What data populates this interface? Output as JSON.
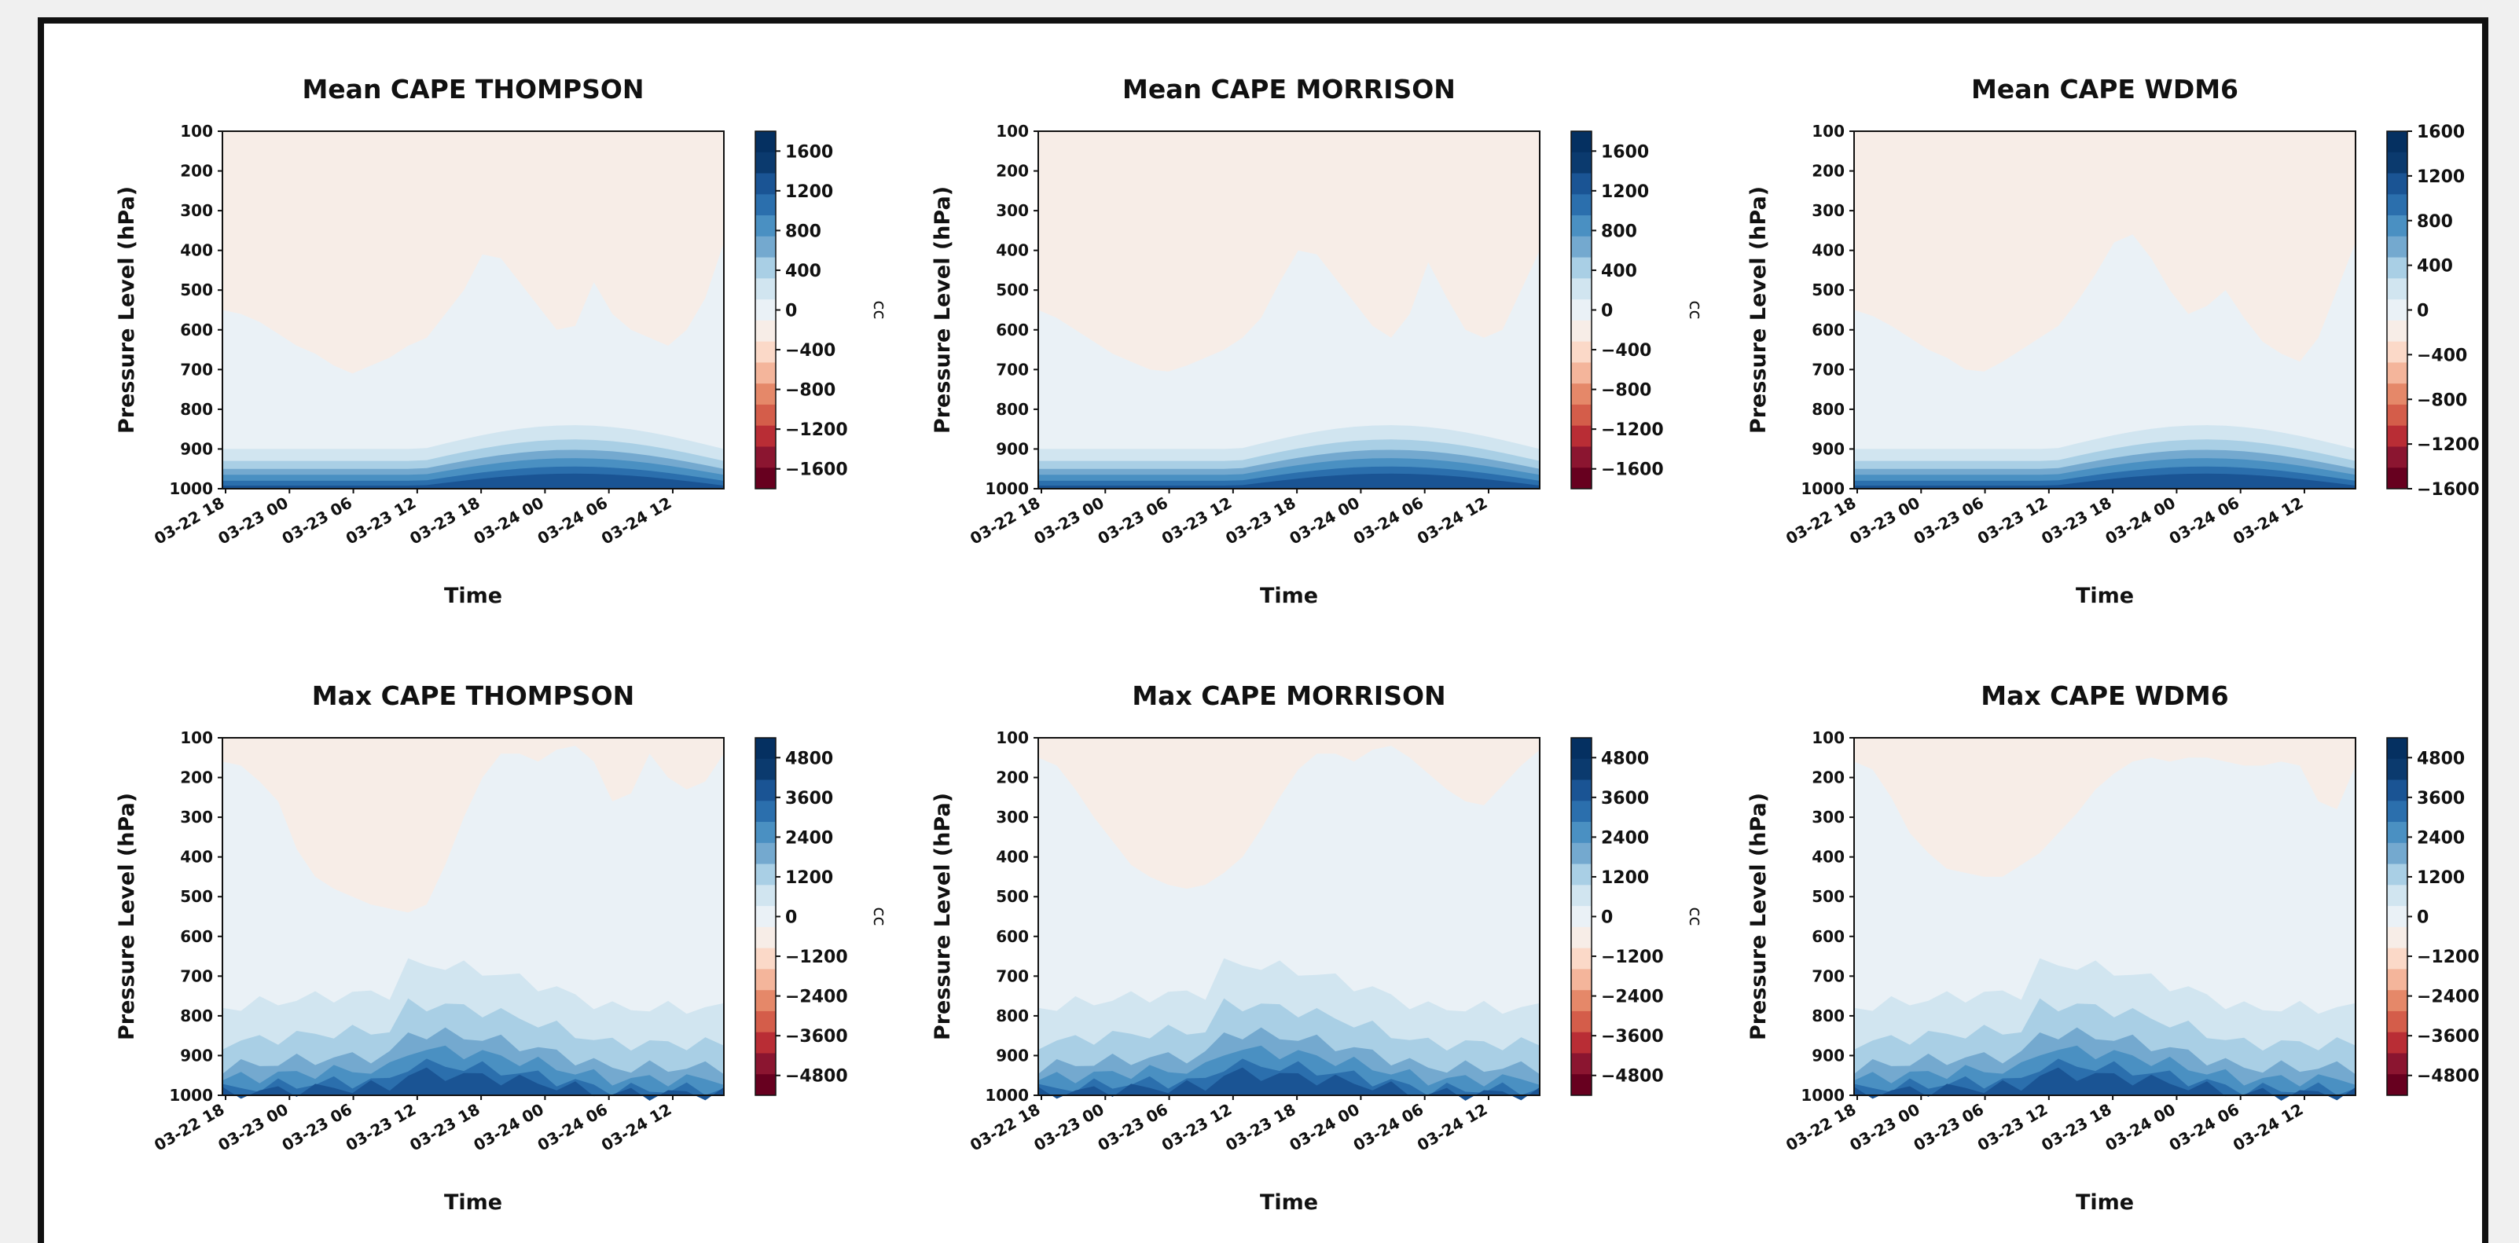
{
  "figure": {
    "background": "#ffffff",
    "frame_color": "#111111"
  },
  "chart_data": [
    {
      "type": "heatmap",
      "title": "Mean CAPE THOMPSON",
      "xlabel": "Time",
      "ylabel": "Pressure Level (hPa)",
      "xticks": [
        "03-22 18",
        "03-23 00",
        "03-23 06",
        "03-23 12",
        "03-23 18",
        "03-24 00",
        "03-24 06",
        "03-24 12"
      ],
      "yticks": [
        100,
        200,
        300,
        400,
        500,
        600,
        700,
        800,
        900,
        1000
      ],
      "y_inverted": true,
      "colormap": "RdBu",
      "colorbar": {
        "label": "cc",
        "ticks": [
          1600,
          1200,
          800,
          400,
          0,
          "−400",
          "−800",
          "−1200",
          "−1600"
        ],
        "range": [
          -1800,
          1800
        ]
      },
      "profile": {
        "upper_boundary_hpa": [
          550,
          560,
          580,
          610,
          640,
          660,
          690,
          710,
          690,
          670,
          640,
          620,
          560,
          500,
          410,
          420,
          480,
          540,
          600,
          590,
          480,
          560,
          600,
          620,
          640,
          600,
          520,
          380
        ],
        "layer_tops_hpa": [
          900,
          930,
          950,
          965,
          980,
          992
        ]
      }
    },
    {
      "type": "heatmap",
      "title": "Mean CAPE MORRISON",
      "xlabel": "Time",
      "ylabel": "Pressure Level (hPa)",
      "xticks": [
        "03-22 18",
        "03-23 00",
        "03-23 06",
        "03-23 12",
        "03-23 18",
        "03-24 00",
        "03-24 06",
        "03-24 12"
      ],
      "yticks": [
        100,
        200,
        300,
        400,
        500,
        600,
        700,
        800,
        900,
        1000
      ],
      "y_inverted": true,
      "colormap": "RdBu",
      "colorbar": {
        "label": "cc",
        "ticks": [
          1600,
          1200,
          800,
          400,
          0,
          "−400",
          "−800",
          "−1200",
          "−1600"
        ],
        "range": [
          -1800,
          1800
        ]
      },
      "profile": {
        "upper_boundary_hpa": [
          550,
          570,
          600,
          630,
          660,
          680,
          700,
          705,
          690,
          670,
          650,
          620,
          570,
          480,
          400,
          410,
          470,
          530,
          590,
          620,
          560,
          430,
          520,
          600,
          620,
          600,
          500,
          400
        ],
        "layer_tops_hpa": [
          900,
          930,
          950,
          965,
          980,
          992
        ]
      }
    },
    {
      "type": "heatmap",
      "title": "Mean CAPE WDM6",
      "xlabel": "Time",
      "ylabel": "Pressure Level (hPa)",
      "xticks": [
        "03-22 18",
        "03-23 00",
        "03-23 06",
        "03-23 12",
        "03-23 18",
        "03-24 00",
        "03-24 06",
        "03-24 12"
      ],
      "yticks": [
        100,
        200,
        300,
        400,
        500,
        600,
        700,
        800,
        900,
        1000
      ],
      "y_inverted": true,
      "colormap": "RdBu",
      "colorbar": {
        "label": "cc",
        "ticks": [
          1600,
          1200,
          800,
          400,
          0,
          "−400",
          "−800",
          "−1200",
          "−1600"
        ],
        "range": [
          -1600,
          1600
        ]
      },
      "profile": {
        "upper_boundary_hpa": [
          550,
          565,
          590,
          620,
          650,
          670,
          700,
          705,
          680,
          650,
          620,
          590,
          530,
          460,
          380,
          360,
          420,
          500,
          560,
          540,
          500,
          570,
          630,
          660,
          680,
          620,
          500,
          380
        ],
        "layer_tops_hpa": [
          900,
          930,
          950,
          965,
          980,
          992
        ]
      }
    },
    {
      "type": "heatmap",
      "title": "Max CAPE THOMPSON",
      "xlabel": "Time",
      "ylabel": "Pressure Level (hPa)",
      "xticks": [
        "03-22 18",
        "03-23 00",
        "03-23 06",
        "03-23 12",
        "03-23 18",
        "03-24 00",
        "03-24 06",
        "03-24 12"
      ],
      "yticks": [
        100,
        200,
        300,
        400,
        500,
        600,
        700,
        800,
        900,
        1000
      ],
      "y_inverted": true,
      "colormap": "RdBu",
      "colorbar": {
        "label": "cc",
        "ticks": [
          4800,
          3600,
          2400,
          1200,
          0,
          "−1200",
          "−2400",
          "−3600",
          "−4800"
        ],
        "range": [
          -5400,
          5400
        ]
      },
      "profile": {
        "upper_boundary_hpa": [
          160,
          170,
          210,
          260,
          380,
          450,
          480,
          500,
          520,
          530,
          540,
          520,
          420,
          300,
          200,
          140,
          140,
          160,
          130,
          120,
          160,
          260,
          240,
          140,
          200,
          230,
          210,
          140
        ],
        "layer_tops_hpa": [
          780,
          870,
          930,
          960,
          985,
          996
        ]
      }
    },
    {
      "type": "heatmap",
      "title": "Max CAPE MORRISON",
      "xlabel": "Time",
      "ylabel": "Pressure Level (hPa)",
      "xticks": [
        "03-22 18",
        "03-23 00",
        "03-23 06",
        "03-23 12",
        "03-23 18",
        "03-24 00",
        "03-24 06",
        "03-24 12"
      ],
      "yticks": [
        100,
        200,
        300,
        400,
        500,
        600,
        700,
        800,
        900,
        1000
      ],
      "y_inverted": true,
      "colormap": "RdBu",
      "colorbar": {
        "label": "cc",
        "ticks": [
          4800,
          3600,
          2400,
          1200,
          0,
          "−1200",
          "−2400",
          "−3600",
          "−4800"
        ],
        "range": [
          -5400,
          5400
        ]
      },
      "profile": {
        "upper_boundary_hpa": [
          150,
          170,
          230,
          300,
          360,
          420,
          450,
          470,
          480,
          470,
          440,
          400,
          330,
          250,
          180,
          140,
          140,
          160,
          130,
          120,
          150,
          190,
          230,
          260,
          270,
          220,
          170,
          130
        ],
        "layer_tops_hpa": [
          780,
          870,
          930,
          960,
          985,
          996
        ]
      }
    },
    {
      "type": "heatmap",
      "title": "Max CAPE WDM6",
      "xlabel": "Time",
      "ylabel": "Pressure Level (hPa)",
      "xticks": [
        "03-22 18",
        "03-23 00",
        "03-23 06",
        "03-23 12",
        "03-23 18",
        "03-24 00",
        "03-24 06",
        "03-24 12"
      ],
      "yticks": [
        100,
        200,
        300,
        400,
        500,
        600,
        700,
        800,
        900,
        1000
      ],
      "y_inverted": true,
      "colormap": "RdBu",
      "colorbar": {
        "label": "cc",
        "ticks": [
          4800,
          3600,
          2400,
          1200,
          0,
          "−1200",
          "−2400",
          "−3600",
          "−4800"
        ],
        "range": [
          -5400,
          5400
        ]
      },
      "profile": {
        "upper_boundary_hpa": [
          160,
          180,
          250,
          340,
          390,
          430,
          440,
          450,
          450,
          420,
          390,
          340,
          290,
          230,
          190,
          160,
          150,
          160,
          150,
          150,
          160,
          170,
          170,
          160,
          170,
          260,
          280,
          170
        ],
        "layer_tops_hpa": [
          780,
          870,
          930,
          960,
          985,
          996
        ]
      }
    }
  ]
}
